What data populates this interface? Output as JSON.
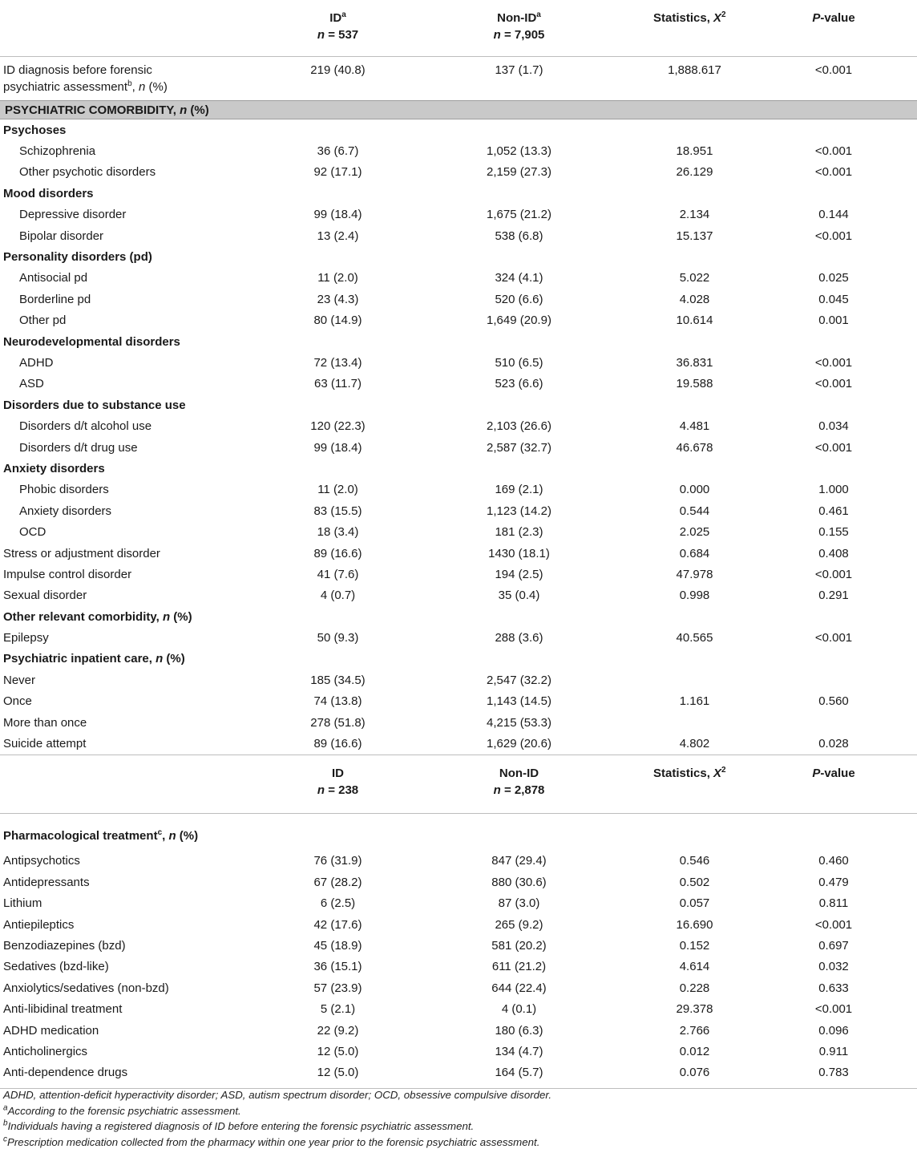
{
  "header": {
    "col_id": "ID",
    "col_id_sup": "a",
    "col_id_n": "n = 537",
    "col_nonid": "Non-ID",
    "col_nonid_sup": "a",
    "col_nonid_n": "n = 7,905",
    "col_stat": "Statistics, X",
    "col_stat_sup": "2",
    "col_pv": "P-value"
  },
  "first_row": {
    "label_line1": "ID diagnosis before forensic",
    "label_line2": "psychiatric assessment",
    "label_sup": "b",
    "label_suffix": ", n (%)",
    "id": "219 (40.8)",
    "nonid": "137 (1.7)",
    "stat": "1,888.617",
    "pv": "<0.001"
  },
  "section_title": "PSYCHIATRIC COMORBIDITY, n (%)",
  "rows": [
    {
      "type": "cat",
      "label": "Psychoses"
    },
    {
      "type": "row",
      "indent": true,
      "label": "Schizophrenia",
      "id": "36 (6.7)",
      "nonid": "1,052 (13.3)",
      "stat": "18.951",
      "pv": "<0.001"
    },
    {
      "type": "row",
      "indent": true,
      "label": "Other psychotic disorders",
      "id": "92 (17.1)",
      "nonid": "2,159 (27.3)",
      "stat": "26.129",
      "pv": "<0.001"
    },
    {
      "type": "cat",
      "label": "Mood disorders"
    },
    {
      "type": "row",
      "indent": true,
      "label": "Depressive disorder",
      "id": "99 (18.4)",
      "nonid": "1,675 (21.2)",
      "stat": "2.134",
      "pv": "0.144"
    },
    {
      "type": "row",
      "indent": true,
      "label": "Bipolar disorder",
      "id": "13 (2.4)",
      "nonid": "538 (6.8)",
      "stat": "15.137",
      "pv": "<0.001"
    },
    {
      "type": "cat",
      "label": "Personality disorders (pd)"
    },
    {
      "type": "row",
      "indent": true,
      "label": "Antisocial pd",
      "id": "11 (2.0)",
      "nonid": "324 (4.1)",
      "stat": "5.022",
      "pv": "0.025"
    },
    {
      "type": "row",
      "indent": true,
      "label": "Borderline pd",
      "id": "23 (4.3)",
      "nonid": "520 (6.6)",
      "stat": "4.028",
      "pv": "0.045"
    },
    {
      "type": "row",
      "indent": true,
      "label": "Other pd",
      "id": "80 (14.9)",
      "nonid": "1,649 (20.9)",
      "stat": "10.614",
      "pv": "0.001"
    },
    {
      "type": "cat",
      "label": "Neurodevelopmental disorders"
    },
    {
      "type": "row",
      "indent": true,
      "label": "ADHD",
      "id": "72 (13.4)",
      "nonid": "510 (6.5)",
      "stat": "36.831",
      "pv": "<0.001"
    },
    {
      "type": "row",
      "indent": true,
      "label": "ASD",
      "id": "63 (11.7)",
      "nonid": "523 (6.6)",
      "stat": "19.588",
      "pv": "<0.001"
    },
    {
      "type": "cat",
      "label": "Disorders due to substance use"
    },
    {
      "type": "row",
      "indent": true,
      "label": "Disorders d/t alcohol use",
      "id": "120 (22.3)",
      "nonid": "2,103 (26.6)",
      "stat": "4.481",
      "pv": "0.034"
    },
    {
      "type": "row",
      "indent": true,
      "label": "Disorders d/t drug use",
      "id": "99 (18.4)",
      "nonid": "2,587 (32.7)",
      "stat": "46.678",
      "pv": "<0.001"
    },
    {
      "type": "cat",
      "label": "Anxiety disorders"
    },
    {
      "type": "row",
      "indent": true,
      "label": "Phobic disorders",
      "id": "11 (2.0)",
      "nonid": "169 (2.1)",
      "stat": "0.000",
      "pv": "1.000"
    },
    {
      "type": "row",
      "indent": true,
      "label": "Anxiety disorders",
      "id": "83 (15.5)",
      "nonid": "1,123 (14.2)",
      "stat": "0.544",
      "pv": "0.461"
    },
    {
      "type": "row",
      "indent": true,
      "label": "OCD",
      "id": "18 (3.4)",
      "nonid": "181 (2.3)",
      "stat": "2.025",
      "pv": "0.155"
    },
    {
      "type": "row",
      "indent": false,
      "label": "Stress or adjustment disorder",
      "id": "89 (16.6)",
      "nonid": "1430 (18.1)",
      "stat": "0.684",
      "pv": "0.408"
    },
    {
      "type": "row",
      "indent": false,
      "label": "Impulse control disorder",
      "id": "41 (7.6)",
      "nonid": "194 (2.5)",
      "stat": "47.978",
      "pv": "<0.001"
    },
    {
      "type": "row",
      "indent": false,
      "label": "Sexual disorder",
      "id": "4 (0.7)",
      "nonid": "35 (0.4)",
      "stat": "0.998",
      "pv": "0.291"
    },
    {
      "type": "cat",
      "label": "Other relevant comorbidity, n (%)"
    },
    {
      "type": "row",
      "indent": false,
      "label": "Epilepsy",
      "id": "50 (9.3)",
      "nonid": "288 (3.6)",
      "stat": "40.565",
      "pv": "<0.001"
    },
    {
      "type": "cat",
      "label": "Psychiatric inpatient care, n (%)"
    },
    {
      "type": "row",
      "indent": false,
      "label": "Never",
      "id": "185 (34.5)",
      "nonid": "2,547 (32.2)",
      "stat": "",
      "pv": ""
    },
    {
      "type": "row",
      "indent": false,
      "label": "Once",
      "id": "74 (13.8)",
      "nonid": "1,143 (14.5)",
      "stat": "1.161",
      "pv": "0.560"
    },
    {
      "type": "row",
      "indent": false,
      "label": "More than once",
      "id": "278 (51.8)",
      "nonid": "4,215 (53.3)",
      "stat": "",
      "pv": ""
    },
    {
      "type": "row",
      "indent": false,
      "label": "Suicide attempt",
      "id": "89 (16.6)",
      "nonid": "1,629 (20.6)",
      "stat": "4.802",
      "pv": "0.028"
    }
  ],
  "header2": {
    "col_id": "ID",
    "col_id_n": "n = 238",
    "col_nonid": "Non-ID",
    "col_nonid_n": "n = 2,878",
    "col_stat": "Statistics, X",
    "col_stat_sup": "2",
    "col_pv": "P-value"
  },
  "pharm": {
    "title": "Pharmacological treatment",
    "title_sup": "c",
    "title_suffix": ", n (%)",
    "rows": [
      {
        "label": "Antipsychotics",
        "id": "76 (31.9)",
        "nonid": "847 (29.4)",
        "stat": "0.546",
        "pv": "0.460"
      },
      {
        "label": "Antidepressants",
        "id": "67 (28.2)",
        "nonid": "880 (30.6)",
        "stat": "0.502",
        "pv": "0.479"
      },
      {
        "label": "Lithium",
        "id": "6 (2.5)",
        "nonid": "87 (3.0)",
        "stat": "0.057",
        "pv": "0.811"
      },
      {
        "label": "Antiepileptics",
        "id": "42 (17.6)",
        "nonid": "265 (9.2)",
        "stat": "16.690",
        "pv": "<0.001"
      },
      {
        "label": "Benzodiazepines (bzd)",
        "id": "45 (18.9)",
        "nonid": "581 (20.2)",
        "stat": "0.152",
        "pv": "0.697"
      },
      {
        "label": "Sedatives (bzd-like)",
        "id": "36 (15.1)",
        "nonid": "611 (21.2)",
        "stat": "4.614",
        "pv": "0.032"
      },
      {
        "label": "Anxiolytics/sedatives (non-bzd)",
        "id": "57 (23.9)",
        "nonid": "644 (22.4)",
        "stat": "0.228",
        "pv": "0.633"
      },
      {
        "label": "Anti-libidinal treatment",
        "id": "5 (2.1)",
        "nonid": "4 (0.1)",
        "stat": "29.378",
        "pv": "<0.001"
      },
      {
        "label": "ADHD medication",
        "id": "22 (9.2)",
        "nonid": "180 (6.3)",
        "stat": "2.766",
        "pv": "0.096"
      },
      {
        "label": "Anticholinergics",
        "id": "12 (5.0)",
        "nonid": "134 (4.7)",
        "stat": "0.012",
        "pv": "0.911"
      },
      {
        "label": "Anti-dependence drugs",
        "id": "12 (5.0)",
        "nonid": "164 (5.7)",
        "stat": "0.076",
        "pv": "0.783"
      }
    ]
  },
  "footnotes": {
    "abbrev": "ADHD, attention-deficit hyperactivity disorder; ASD, autism spectrum disorder; OCD, obsessive compulsive disorder.",
    "a_mark": "a",
    "a_text": "According to the forensic psychiatric assessment.",
    "b_mark": "b",
    "b_text": "Individuals having a registered diagnosis of ID before entering the forensic psychiatric assessment.",
    "c_mark": "c",
    "c_text": "Prescription medication collected from the pharmacy within one year prior to the forensic psychiatric assessment."
  }
}
